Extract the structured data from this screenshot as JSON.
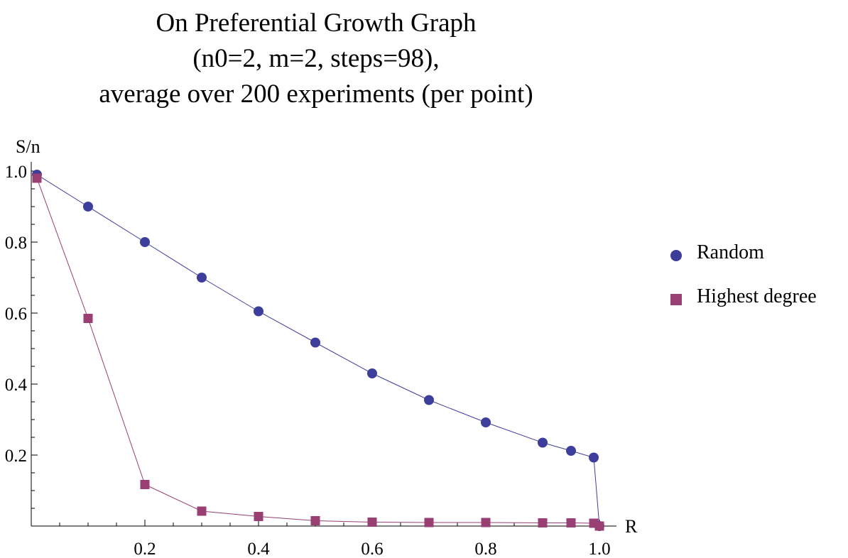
{
  "chart_data": {
    "type": "line",
    "title_lines": [
      "On Preferential Growth Graph",
      "(n0=2, m=2, steps=98),",
      "average over 200 experiments (per point)"
    ],
    "xlabel": "R",
    "ylabel": "S/n",
    "xlim": [
      0,
      1.0
    ],
    "ylim": [
      0,
      1.0
    ],
    "x_ticks": [
      "0.2",
      "0.4",
      "0.6",
      "0.8",
      "1.0"
    ],
    "y_ticks": [
      "0.2",
      "0.4",
      "0.6",
      "0.8",
      "1.0"
    ],
    "grid": false,
    "legend_position": "right",
    "series": [
      {
        "name": "Random",
        "marker": "circle",
        "color": "#3d3d9c",
        "x": [
          0.01,
          0.1,
          0.2,
          0.3,
          0.4,
          0.5,
          0.6,
          0.7,
          0.8,
          0.9,
          0.95,
          0.99,
          1.0
        ],
        "y": [
          0.99,
          0.9,
          0.8,
          0.7,
          0.605,
          0.517,
          0.43,
          0.355,
          0.292,
          0.235,
          0.212,
          0.193,
          0.0
        ]
      },
      {
        "name": "Highest degree",
        "marker": "square",
        "color": "#993f73",
        "x": [
          0.01,
          0.1,
          0.2,
          0.3,
          0.4,
          0.5,
          0.6,
          0.7,
          0.8,
          0.9,
          0.95,
          0.99,
          1.0
        ],
        "y": [
          0.98,
          0.585,
          0.117,
          0.042,
          0.027,
          0.015,
          0.011,
          0.01,
          0.01,
          0.009,
          0.009,
          0.008,
          0.0
        ]
      }
    ]
  }
}
